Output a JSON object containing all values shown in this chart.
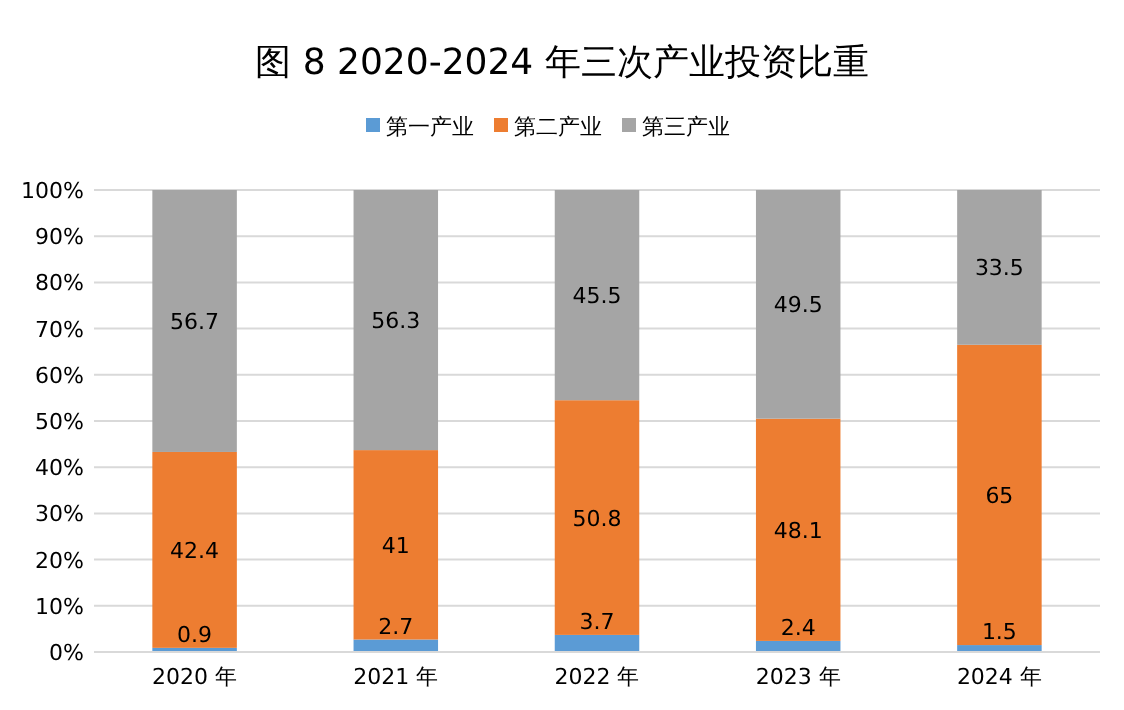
{
  "chart_data": {
    "type": "bar",
    "title": "图 8  2020-2024 年三次产业投资比重",
    "stacked": true,
    "data_labels": true,
    "grid": "y",
    "legend": "top",
    "categories": [
      "2020 年",
      "2021 年",
      "2022 年",
      "2023 年",
      "2024 年"
    ],
    "series": [
      {
        "name": "第一产业",
        "color": "#5b9bd5",
        "values": [
          0.9,
          2.7,
          3.7,
          2.4,
          1.5
        ]
      },
      {
        "name": "第二产业",
        "color": "#ed7d31",
        "values": [
          42.4,
          41,
          50.8,
          48.1,
          65
        ]
      },
      {
        "name": "第三产业",
        "color": "#a5a5a5",
        "values": [
          56.7,
          56.3,
          45.5,
          49.5,
          33.5
        ]
      }
    ],
    "ylim": [
      0,
      100
    ],
    "yticks": [
      {
        "value": 0,
        "label": "0%"
      },
      {
        "value": 10,
        "label": "10%"
      },
      {
        "value": 20,
        "label": "20%"
      },
      {
        "value": 30,
        "label": "30%"
      },
      {
        "value": 40,
        "label": "40%"
      },
      {
        "value": 50,
        "label": "50%"
      },
      {
        "value": 60,
        "label": "60%"
      },
      {
        "value": 70,
        "label": "70%"
      },
      {
        "value": 80,
        "label": "80%"
      },
      {
        "value": 90,
        "label": "90%"
      },
      {
        "value": 100,
        "label": "100%"
      }
    ]
  }
}
